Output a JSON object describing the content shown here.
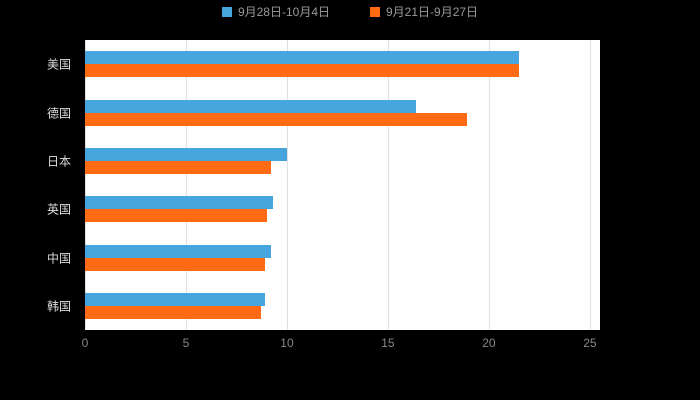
{
  "chart_data": {
    "type": "bar",
    "orientation": "horizontal",
    "title": "",
    "categories": [
      "美国",
      "德国",
      "日本",
      "英国",
      "中国",
      "韩国"
    ],
    "series": [
      {
        "name": "9月28日-10月4日",
        "color": "#45A5DC",
        "values": [
          21.5,
          16.4,
          10.0,
          9.3,
          9.2,
          8.9
        ]
      },
      {
        "name": "9月21日-9月27日",
        "color": "#FF6A13",
        "values": [
          21.5,
          18.9,
          9.2,
          9.0,
          8.9,
          8.7
        ]
      }
    ],
    "x_ticks": [
      "0",
      "5",
      "10",
      "15",
      "20",
      "25"
    ],
    "xlim": [
      0,
      25.5
    ],
    "grid": true,
    "legend_position": "top"
  },
  "colors": {
    "background": "#000000",
    "plot_background": "#ffffff",
    "gridline": "#e0e0e0",
    "tick_label": "#888888",
    "category_label": "#dddddd",
    "legend_label": "#999999"
  }
}
